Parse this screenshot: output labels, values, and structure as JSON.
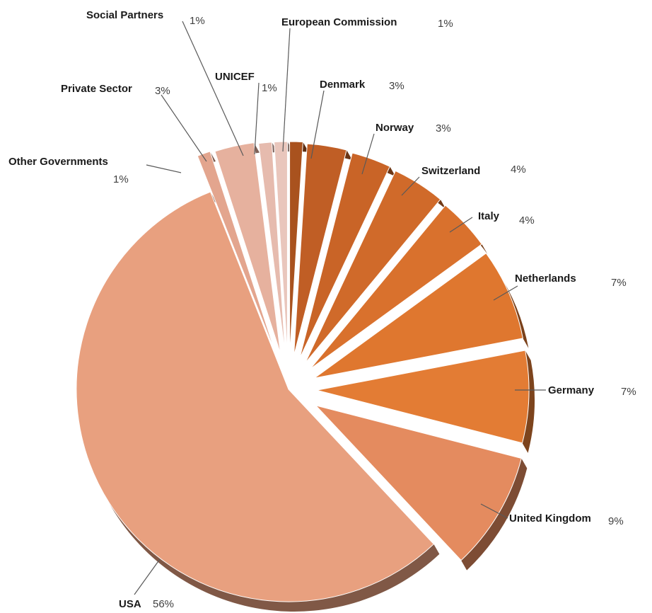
{
  "chart_data": {
    "type": "pie",
    "title": "",
    "style": "3d-exploded",
    "slices": [
      {
        "label": "USA",
        "value": 56,
        "value_label": "56%",
        "color": "#E8A07F"
      },
      {
        "label": "United Kingdom",
        "value": 9,
        "value_label": "9%",
        "color": "#E48B5F"
      },
      {
        "label": "Germany",
        "value": 7,
        "value_label": "7%",
        "color": "#E37C34"
      },
      {
        "label": "Netherlands",
        "value": 7,
        "value_label": "7%",
        "color": "#DF772F"
      },
      {
        "label": "Italy",
        "value": 4,
        "value_label": "4%",
        "color": "#D9712D"
      },
      {
        "label": "Switzerland",
        "value": 4,
        "value_label": "4%",
        "color": "#D06A2A"
      },
      {
        "label": "Norway",
        "value": 3,
        "value_label": "3%",
        "color": "#C96427"
      },
      {
        "label": "Denmark",
        "value": 3,
        "value_label": "3%",
        "color": "#C05E25"
      },
      {
        "label": "European Commission",
        "value": 1,
        "value_label": "1%",
        "color": "#A9521E"
      },
      {
        "label": "UNICEF",
        "value": 1,
        "value_label": "1%",
        "color": "#E9C6BC"
      },
      {
        "label": "Social Partners",
        "value": 1,
        "value_label": "1%",
        "color": "#E6BBAE"
      },
      {
        "label": "Private Sector",
        "value": 3,
        "value_label": "3%",
        "color": "#E6B19E"
      },
      {
        "label": "Other Governments",
        "value": 1,
        "value_label": "1%",
        "color": "#E3A58E"
      }
    ]
  }
}
